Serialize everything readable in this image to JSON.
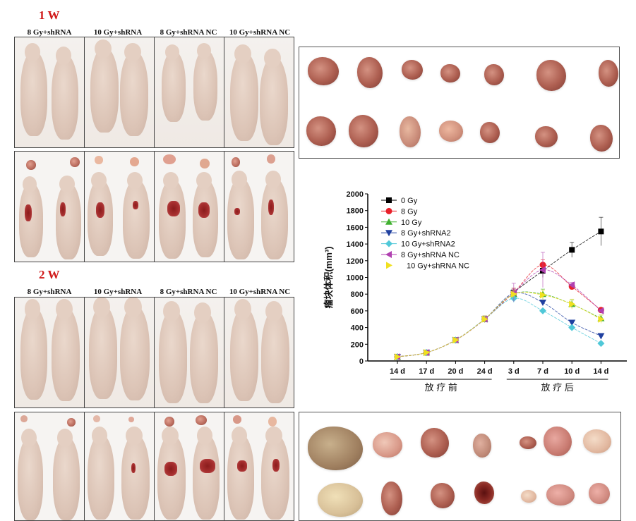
{
  "figure": {
    "week1_label": "1 W",
    "week2_label": "2 W",
    "group_labels": [
      "8 Gy+shRNA",
      "10 Gy+shRNA",
      "8 Gy+shRNA NC",
      "10 Gy+shRNA NC"
    ],
    "week2_group_labels": [
      "8 Gy+shRNA",
      "10 Gy+shRNA",
      "8 Gy+shRNA NC",
      "10 Gy+shRNA NC"
    ]
  },
  "chart_data": {
    "type": "line",
    "title": "",
    "xlabel": "",
    "ylabel": "瘤块体积(mm³)",
    "ylim": [
      0,
      2000
    ],
    "yticks": [
      0,
      200,
      400,
      600,
      800,
      1000,
      1200,
      1400,
      1600,
      1800,
      2000
    ],
    "categories": [
      "14 d",
      "17 d",
      "20 d",
      "24 d",
      "3 d",
      "7 d",
      "10 d",
      "14 d"
    ],
    "x_groups": [
      {
        "label": "放 疗 前",
        "from": 0,
        "to": 3
      },
      {
        "label": "放 疗 后",
        "from": 4,
        "to": 7
      }
    ],
    "grid": false,
    "legend_position": "top-left",
    "series": [
      {
        "name": "0 Gy",
        "color": "#000000",
        "marker": "square",
        "values": [
          50,
          100,
          250,
          500,
          820,
          1080,
          1330,
          1550
        ],
        "errors": [
          10,
          15,
          25,
          40,
          50,
          80,
          90,
          170
        ]
      },
      {
        "name": "8 Gy",
        "color": "#e8202a",
        "marker": "circle",
        "values": [
          50,
          100,
          250,
          500,
          820,
          1150,
          890,
          610
        ],
        "errors": [
          10,
          15,
          25,
          40,
          50,
          60,
          30,
          20
        ]
      },
      {
        "name": "10 Gy",
        "color": "#40b030",
        "marker": "triangle-up",
        "values": [
          50,
          100,
          250,
          500,
          800,
          800,
          680,
          510
        ],
        "errors": [
          10,
          15,
          25,
          40,
          40,
          60,
          50,
          40
        ]
      },
      {
        "name": "8 Gy+shRNA2",
        "color": "#2040a0",
        "marker": "triangle-down",
        "values": [
          50,
          100,
          250,
          500,
          810,
          700,
          460,
          300
        ],
        "errors": [
          10,
          15,
          25,
          40,
          40,
          30,
          20,
          20
        ]
      },
      {
        "name": "10 Gy+shRNA2",
        "color": "#50c8d8",
        "marker": "diamond",
        "values": [
          50,
          100,
          250,
          500,
          750,
          600,
          400,
          210
        ],
        "errors": [
          10,
          15,
          25,
          40,
          50,
          20,
          20,
          15
        ]
      },
      {
        "name": "8 Gy+shRNA NC",
        "color": "#b040b0",
        "marker": "triangle-left",
        "values": [
          50,
          100,
          250,
          500,
          820,
          1090,
          910,
          600
        ],
        "errors": [
          10,
          15,
          25,
          40,
          110,
          210,
          30,
          20
        ]
      },
      {
        "name": "10 Gy+shRNA NC",
        "color": "#f0e020",
        "marker": "triangle-right",
        "values": [
          50,
          100,
          250,
          500,
          800,
          790,
          680,
          500
        ],
        "errors": [
          10,
          15,
          25,
          40,
          40,
          60,
          60,
          50
        ]
      }
    ]
  }
}
